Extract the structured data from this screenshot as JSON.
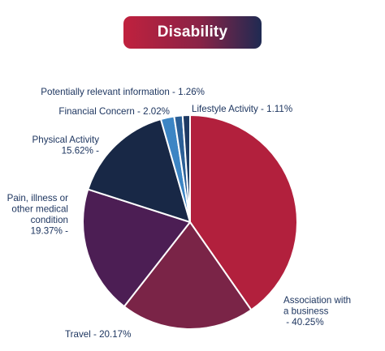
{
  "chart_data": {
    "type": "pie",
    "title": "Disability",
    "slices": [
      {
        "name": "Association with a business",
        "label_lines": [
          "Association with",
          "a business",
          " - 40.25%"
        ],
        "value": 40.25,
        "color": "#b2203d"
      },
      {
        "name": "Travel",
        "label_lines": [
          "Travel - 20.17%"
        ],
        "value": 20.17,
        "color": "#7a2447"
      },
      {
        "name": "Pain, illness or other medical condition",
        "label_lines": [
          "Pain, illness or",
          "other medical",
          "condition",
          "19.37% -"
        ],
        "value": 19.37,
        "color": "#4c1e54"
      },
      {
        "name": "Physical Activity",
        "label_lines": [
          "Physical Activity",
          "15.62% -"
        ],
        "value": 15.62,
        "color": "#182846"
      },
      {
        "name": "Financial Concern",
        "label_lines": [
          "Financial Concern - 2.02%"
        ],
        "value": 2.02,
        "color": "#3c85c4"
      },
      {
        "name": "Potentially relevant information",
        "label_lines": [
          "Potentially relevant information - 1.26%"
        ],
        "value": 1.26,
        "color": "#2b5f96"
      },
      {
        "name": "Lifestyle Activity",
        "label_lines": [
          "Lifestyle Activity - 1.11%"
        ],
        "value": 1.11,
        "color": "#1e3a63"
      }
    ],
    "start_angle_deg": 0,
    "direction": "clockwise"
  }
}
